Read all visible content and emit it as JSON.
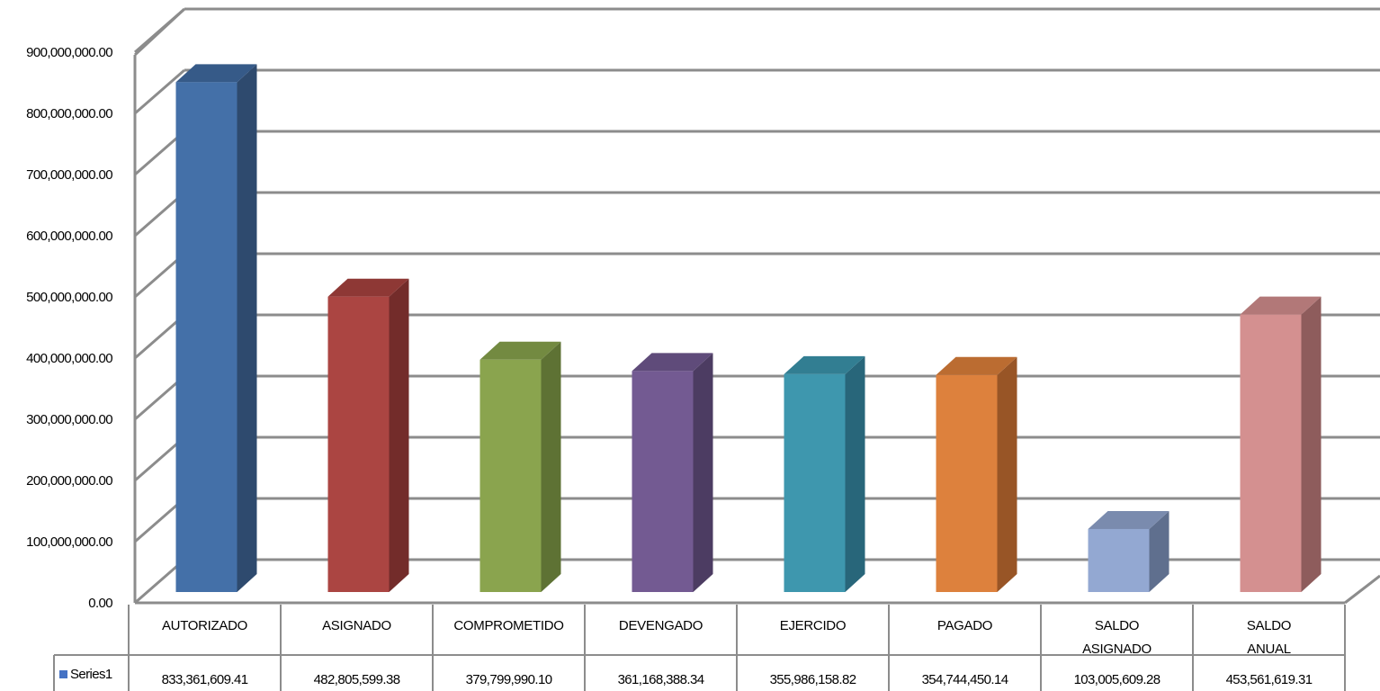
{
  "chart_data": {
    "type": "bar",
    "categories": [
      [
        "AUTORIZADO"
      ],
      [
        "ASIGNADO"
      ],
      [
        "COMPROMETIDO"
      ],
      [
        "DEVENGADO"
      ],
      [
        "EJERCIDO"
      ],
      [
        "PAGADO"
      ],
      [
        "SALDO",
        "ASIGNADO"
      ],
      [
        "SALDO",
        "ANUAL"
      ]
    ],
    "series": [
      {
        "name": "Series1",
        "values": [
          833361609.41,
          482805599.38,
          379799990.1,
          361168388.34,
          355986158.82,
          354744450.14,
          103005609.28,
          453561619.31
        ],
        "value_labels": [
          "833,361,609.41",
          "482,805,599.38",
          "379,799,990.10",
          "361,168,388.34",
          "355,986,158.82",
          "354,744,450.14",
          "103,005,609.28",
          "453,561,619.31"
        ]
      }
    ],
    "ylim": [
      0,
      900000000
    ],
    "y_ticks": [
      0,
      100000000,
      200000000,
      300000000,
      400000000,
      500000000,
      600000000,
      700000000,
      800000000,
      900000000
    ],
    "y_tick_labels": [
      "0.00",
      "100,000,000.00",
      "200,000,000.00",
      "300,000,000.00",
      "400,000,000.00",
      "500,000,000.00",
      "600,000,000.00",
      "700,000,000.00",
      "800,000,000.00",
      "900,000,000.00"
    ],
    "bar_colors": [
      {
        "front": "#4470A8",
        "side": "#2E4A6E",
        "top": "#365A88"
      },
      {
        "front": "#AB4542",
        "side": "#732C2A",
        "top": "#8E3835"
      },
      {
        "front": "#8AA44E",
        "side": "#5E7234",
        "top": "#738A41"
      },
      {
        "front": "#735A92",
        "side": "#4C3C62",
        "top": "#5F4B7A"
      },
      {
        "front": "#3E97AE",
        "side": "#28667A",
        "top": "#327E92"
      },
      {
        "front": "#DD813D",
        "side": "#985526",
        "top": "#BB6C31"
      },
      {
        "front": "#93A8D2",
        "side": "#5F6F8E",
        "top": "#7A8BAE"
      },
      {
        "front": "#D49090",
        "side": "#8E5C5C",
        "top": "#B27878"
      }
    ],
    "grid": true,
    "legend": "data-table",
    "legend_color": "#4472C4"
  }
}
